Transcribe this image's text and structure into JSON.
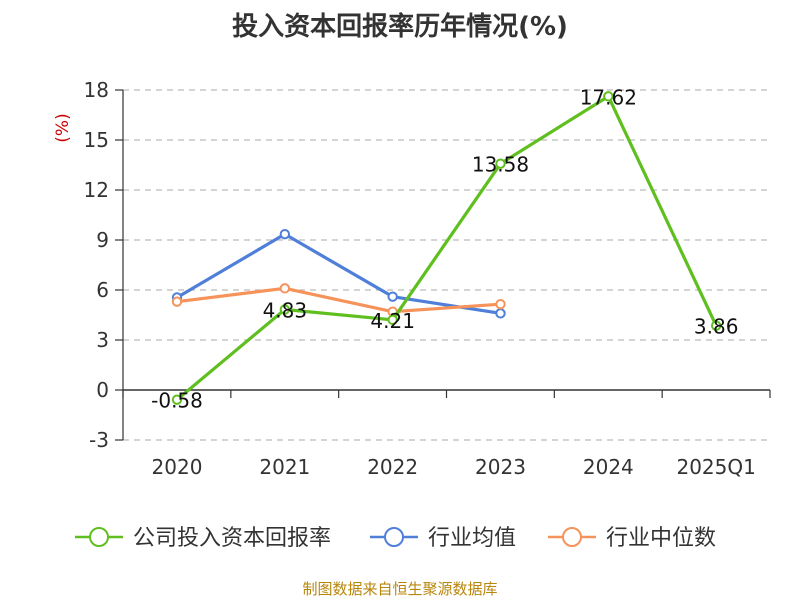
{
  "title": "投入资本回报率历年情况(%)",
  "source": "制图数据来自恒生聚源数据库",
  "chart_data": {
    "type": "line",
    "title": "投入资本回报率历年情况(%)",
    "ylabel": "(%)",
    "xlabel": "",
    "categories": [
      "2020",
      "2021",
      "2022",
      "2023",
      "2024",
      "2025Q1"
    ],
    "ylim": [
      -3,
      18
    ],
    "yticks": [
      -3,
      0,
      3,
      6,
      9,
      12,
      15,
      18
    ],
    "grid": true,
    "legend_position": "bottom",
    "series": [
      {
        "name": "公司投入资本回报率",
        "color": "#5fbf1f",
        "values": [
          -0.58,
          4.83,
          4.21,
          13.58,
          17.62,
          3.86
        ],
        "labels": [
          "-0.58",
          "4.83",
          "4.21",
          "13.58",
          "17.62",
          "3.86"
        ]
      },
      {
        "name": "行业均值",
        "color": "#4f7fd9",
        "values": [
          5.55,
          9.35,
          5.6,
          4.6,
          null,
          null
        ]
      },
      {
        "name": "行业中位数",
        "color": "#f5935a",
        "values": [
          5.3,
          6.1,
          4.7,
          5.15,
          null,
          null
        ]
      }
    ]
  }
}
